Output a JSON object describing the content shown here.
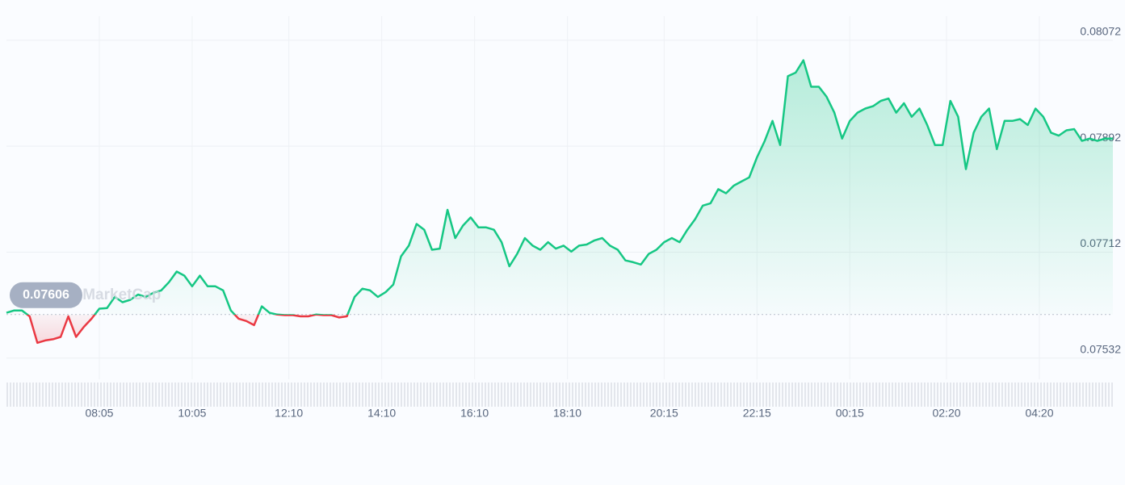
{
  "chart_data": {
    "type": "line",
    "watermark": "CoinMarketCap",
    "reference_value": 0.07606,
    "color_up": "#16c784",
    "color_down": "#ea3943",
    "grid": true,
    "xlim": [
      0,
      143
    ],
    "xticks": [
      {
        "value": 12,
        "label": "08:05"
      },
      {
        "value": 24,
        "label": "10:05"
      },
      {
        "value": 36.5,
        "label": "12:10"
      },
      {
        "value": 48.5,
        "label": "14:10"
      },
      {
        "value": 60.5,
        "label": "16:10"
      },
      {
        "value": 72.5,
        "label": "18:10"
      },
      {
        "value": 85,
        "label": "20:15"
      },
      {
        "value": 97,
        "label": "22:15"
      },
      {
        "value": 109,
        "label": "00:15"
      },
      {
        "value": 121.5,
        "label": "02:20"
      },
      {
        "value": 133.5,
        "label": "04:20"
      }
    ],
    "ylim": [
      0.07496,
      0.08113
    ],
    "yticks": [
      0.07532,
      0.07712,
      0.07892,
      0.08072
    ],
    "values": [
      0.07609,
      0.07613,
      0.07613,
      0.07603,
      0.07558,
      0.07562,
      0.07564,
      0.07568,
      0.07603,
      0.07568,
      0.07585,
      0.07599,
      0.07616,
      0.07617,
      0.07636,
      0.07627,
      0.07631,
      0.0764,
      0.07636,
      0.07643,
      0.07647,
      0.07661,
      0.07679,
      0.07672,
      0.07654,
      0.07672,
      0.07654,
      0.07654,
      0.07647,
      0.07613,
      0.07599,
      0.07595,
      0.07588,
      0.0762,
      0.07609,
      0.07606,
      0.07605,
      0.07605,
      0.07603,
      0.07603,
      0.07606,
      0.07605,
      0.07605,
      0.07601,
      0.07603,
      0.07636,
      0.0765,
      0.07647,
      0.07636,
      0.07644,
      0.07657,
      0.07705,
      0.07723,
      0.0776,
      0.0775,
      0.07716,
      0.07718,
      0.07784,
      0.07736,
      0.07757,
      0.07771,
      0.07754,
      0.07754,
      0.0775,
      0.07729,
      0.07688,
      0.07709,
      0.07736,
      0.07723,
      0.07716,
      0.07729,
      0.07718,
      0.07723,
      0.07713,
      0.07723,
      0.07725,
      0.07732,
      0.07736,
      0.07723,
      0.07716,
      0.07698,
      0.07695,
      0.07691,
      0.07709,
      0.07716,
      0.07729,
      0.07736,
      0.07729,
      0.0775,
      0.07768,
      0.07791,
      0.07795,
      0.07819,
      0.07812,
      0.07825,
      0.07832,
      0.07839,
      0.07873,
      0.07901,
      0.07935,
      0.07894,
      0.08011,
      0.08017,
      0.08038,
      0.07993,
      0.07993,
      0.07976,
      0.07949,
      0.07905,
      0.07935,
      0.07949,
      0.07956,
      0.0796,
      0.07969,
      0.07973,
      0.07949,
      0.07965,
      0.07942,
      0.07956,
      0.07928,
      0.07894,
      0.07894,
      0.07969,
      0.07942,
      0.07853,
      0.07915,
      0.07942,
      0.07956,
      0.07887,
      0.07935,
      0.07935,
      0.07938,
      0.07928,
      0.07956,
      0.07942,
      0.07915,
      0.0791,
      0.07919,
      0.07921,
      0.07901,
      0.07905,
      0.07901,
      0.07905,
      0.07905
    ]
  }
}
